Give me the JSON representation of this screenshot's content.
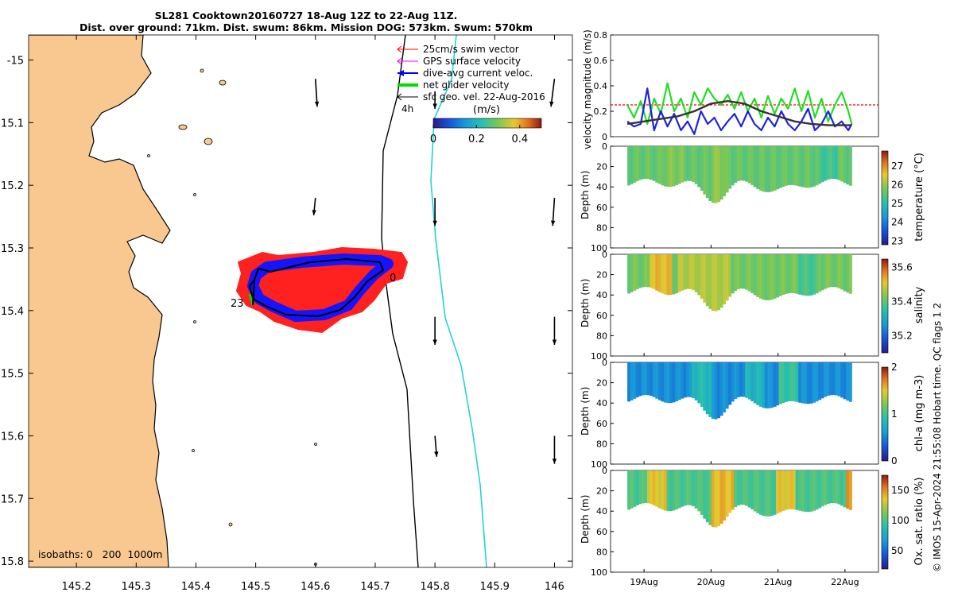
{
  "title": {
    "line1": "SL281 Cooktown20160727 18-Aug 12Z to 22-Aug 11Z.",
    "line2": "Dist. over ground: 71km. Dist. swum: 86km. Mission DOG: 573km. Swum: 570km"
  },
  "map": {
    "xlim": [
      145.12,
      146.03
    ],
    "ylim": [
      -15.81,
      -14.96
    ],
    "x_ticks": [
      145.2,
      145.3,
      145.4,
      145.5,
      145.6,
      145.7,
      145.8,
      145.9,
      146
    ],
    "x_tick_labels": [
      "145.2",
      "145.3",
      "145.4",
      "145.5",
      "145.6",
      "145.7",
      "145.8",
      "145.9",
      "146"
    ],
    "y_ticks": [
      -15,
      -15.1,
      -15.2,
      -15.3,
      -15.4,
      -15.5,
      -15.6,
      -15.7,
      -15.8
    ],
    "y_tick_labels": [
      "-15",
      "15.1",
      "15.2",
      "15.3",
      "15.4",
      "15.5",
      "15.6",
      "15.7",
      "15.8"
    ],
    "legend": [
      {
        "label": "25cm/s swim vector",
        "color": "#ff0000"
      },
      {
        "label": "GPS surface velocity",
        "color": "#ff00ff"
      },
      {
        "label": "dive-avg current veloc.",
        "color": "#0000ff"
      },
      {
        "label": "net glider velocity",
        "color": "#00dd00"
      },
      {
        "label": "sfc geo. vel. 22-Aug-2016",
        "color": "#000000"
      }
    ],
    "legend_scale_label": "4h",
    "colorbar": {
      "label": "(m/s)",
      "ticks": [
        0,
        0.2,
        0.4
      ],
      "tick_labels": [
        "0",
        "0.2",
        "0.4"
      ],
      "range": [
        0,
        0.5
      ]
    },
    "isobaths_label": "isobaths: 0   200  1000m",
    "track_labels": [
      "0",
      "23"
    ],
    "colors": {
      "land": "#f9c891",
      "isobath_200": "#000000",
      "isobath_1000": "#22d4d4",
      "track": "#0000ff",
      "swim": "#ff0000",
      "net": "#00dd00"
    },
    "geo_vectors": [
      {
        "lon": 145.6,
        "lat": -15.03,
        "u": 0.01,
        "v": -0.16
      },
      {
        "lon": 146.0,
        "lat": -15.03,
        "u": -0.02,
        "v": -0.16
      },
      {
        "lon": 145.8,
        "lat": -15.05,
        "u": 0.0,
        "v": -0.1
      },
      {
        "lon": 145.6,
        "lat": -15.22,
        "u": -0.01,
        "v": -0.1
      },
      {
        "lon": 145.8,
        "lat": -15.22,
        "u": 0.0,
        "v": -0.16
      },
      {
        "lon": 146.0,
        "lat": -15.22,
        "u": -0.01,
        "v": -0.16
      },
      {
        "lon": 145.8,
        "lat": -15.41,
        "u": 0.0,
        "v": -0.16
      },
      {
        "lon": 146.0,
        "lat": -15.41,
        "u": 0.0,
        "v": -0.16
      },
      {
        "lon": 145.8,
        "lat": -15.6,
        "u": 0.01,
        "v": -0.12
      },
      {
        "lon": 146.0,
        "lat": -15.6,
        "u": 0.0,
        "v": -0.16
      }
    ]
  },
  "timeseries": {
    "ylabel": "velocity magnitude (m/s)",
    "ylim": [
      0,
      0.8
    ],
    "y_ticks": [
      0,
      0.2,
      0.4,
      0.6,
      0.8
    ],
    "y_tick_labels": [
      "0",
      "0.2",
      "0.4",
      "0.6",
      "0.8"
    ],
    "x_day_range": [
      18.5,
      22.5
    ],
    "series": [
      {
        "name": "GPS surface velocity",
        "color": "#22dd22",
        "t": [
          18.75,
          18.85,
          18.95,
          19.05,
          19.15,
          19.25,
          19.35,
          19.45,
          19.55,
          19.65,
          19.75,
          19.85,
          19.95,
          20.05,
          20.15,
          20.25,
          20.35,
          20.45,
          20.55,
          20.65,
          20.75,
          20.85,
          20.95,
          21.05,
          21.15,
          21.25,
          21.35,
          21.45,
          21.55,
          21.65,
          21.75,
          21.85,
          21.95,
          22.05,
          22.1
        ],
        "values": [
          0.25,
          0.15,
          0.28,
          0.1,
          0.3,
          0.18,
          0.42,
          0.2,
          0.3,
          0.15,
          0.35,
          0.25,
          0.38,
          0.3,
          0.25,
          0.33,
          0.22,
          0.35,
          0.2,
          0.3,
          0.15,
          0.32,
          0.18,
          0.3,
          0.22,
          0.38,
          0.2,
          0.36,
          0.15,
          0.3,
          0.12,
          0.25,
          0.35,
          0.2,
          0.1
        ]
      },
      {
        "name": "dive-avg current veloc.",
        "color": "#2222dd",
        "t": [
          18.75,
          18.85,
          18.95,
          19.05,
          19.15,
          19.25,
          19.35,
          19.45,
          19.55,
          19.65,
          19.75,
          19.85,
          19.95,
          20.05,
          20.15,
          20.25,
          20.35,
          20.45,
          20.55,
          20.65,
          20.75,
          20.85,
          20.95,
          21.05,
          21.15,
          21.25,
          21.35,
          21.45,
          21.55,
          21.65,
          21.75,
          21.85,
          21.95,
          22.05,
          22.1
        ],
        "values": [
          0.12,
          0.08,
          0.1,
          0.38,
          0.05,
          0.2,
          0.08,
          0.18,
          0.05,
          0.12,
          0.02,
          0.2,
          0.1,
          0.15,
          0.05,
          0.12,
          0.18,
          0.08,
          0.2,
          0.1,
          0.05,
          0.15,
          0.08,
          0.2,
          0.1,
          0.05,
          0.12,
          0.22,
          0.05,
          0.1,
          0.2,
          0.08,
          0.12,
          0.05,
          0.1
        ]
      },
      {
        "name": "net glider velocity",
        "color": "#333333",
        "t": [
          18.75,
          19.0,
          19.25,
          19.5,
          19.75,
          20.0,
          20.25,
          20.5,
          20.75,
          21.0,
          21.25,
          21.5,
          21.75,
          22.0,
          22.1
        ],
        "values": [
          0.1,
          0.12,
          0.14,
          0.16,
          0.2,
          0.26,
          0.28,
          0.26,
          0.2,
          0.16,
          0.12,
          0.1,
          0.09,
          0.09,
          0.09
        ]
      }
    ],
    "reference_line": {
      "value": 0.25,
      "color": "#ff0000"
    }
  },
  "sections": [
    {
      "name": "temperature",
      "colorbar_label": "temperature (°C)",
      "clim": [
        22.8,
        27.8
      ],
      "ticks": [
        23,
        24,
        25,
        26,
        27
      ],
      "tick_labels": [
        "23",
        "24",
        "25",
        "26",
        "27"
      ],
      "ylabel": "Depth (m)",
      "depth_ticks": [
        0,
        20,
        40,
        60,
        80,
        100
      ],
      "depth_tick_labels": [
        "0",
        "20",
        "40",
        "60",
        "80",
        "100"
      ],
      "base_value": 25.6,
      "bands": [
        [
          19.3,
          19.6,
          25.8
        ],
        [
          20.0,
          20.2,
          25.9
        ],
        [
          21.6,
          21.9,
          25.3
        ]
      ]
    },
    {
      "name": "salinity",
      "colorbar_label": "salinity",
      "clim": [
        35.1,
        35.65
      ],
      "ticks": [
        35.2,
        35.4,
        35.6
      ],
      "tick_labels": [
        "35.2",
        "35.4",
        "35.6"
      ],
      "ylabel": "Depth (m)",
      "depth_ticks": [
        0,
        20,
        40,
        60,
        80,
        100
      ],
      "depth_tick_labels": [
        "0",
        "20",
        "40",
        "60",
        "80",
        "100"
      ],
      "base_value": 35.42,
      "bands": [
        [
          19.1,
          19.4,
          35.52
        ],
        [
          19.5,
          20.3,
          35.47
        ],
        [
          21.3,
          21.6,
          35.38
        ]
      ]
    },
    {
      "name": "chl-a",
      "colorbar_label": "chl-a (mg m-3)",
      "clim": [
        0,
        2
      ],
      "ticks": [
        0,
        1,
        2
      ],
      "tick_labels": [
        "0",
        "1",
        "2"
      ],
      "ylabel": "Depth (m)",
      "depth_ticks": [
        0,
        20,
        40,
        60,
        80,
        100
      ],
      "depth_tick_labels": [
        "0",
        "20",
        "40",
        "60",
        "80",
        "100"
      ],
      "base_value": 0.55,
      "bands": [
        [
          19.7,
          20.0,
          0.85
        ],
        [
          20.5,
          20.8,
          0.8
        ],
        [
          21.0,
          21.3,
          0.95
        ]
      ]
    },
    {
      "name": "oxygen",
      "colorbar_label": "Ox. sat. ratio (%)",
      "clim": [
        20,
        175
      ],
      "ticks": [
        50,
        100,
        150
      ],
      "tick_labels": [
        "50",
        "100",
        "150"
      ],
      "ylabel": "Depth (m)",
      "depth_ticks": [
        0,
        20,
        40,
        60,
        80,
        100
      ],
      "depth_tick_labels": [
        "0",
        "20",
        "40",
        "60",
        "80",
        "100"
      ],
      "base_value": 100,
      "bands": [
        [
          19.05,
          19.35,
          135
        ],
        [
          20.0,
          20.35,
          140
        ],
        [
          20.95,
          21.25,
          135
        ],
        [
          22.0,
          22.12,
          145
        ]
      ]
    }
  ],
  "section_x_tick_labels": [
    "19Aug",
    "20Aug",
    "21Aug",
    "22Aug"
  ],
  "section_x_ticks": [
    19,
    20,
    21,
    22
  ],
  "credit": "© IMOS 15-Apr-2024 21:55:08 Hobart time. QC flags 1  2"
}
